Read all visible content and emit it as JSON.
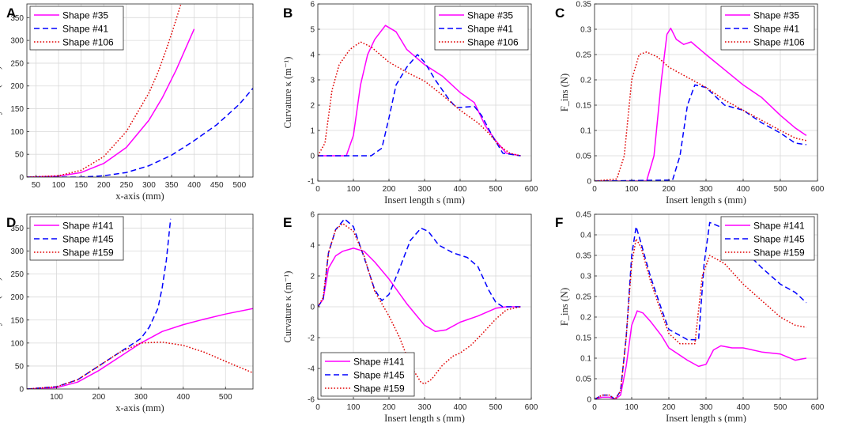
{
  "figure": {
    "colors": {
      "magenta": "#ff00ff",
      "blue": "#0000ff",
      "red": "#e00000",
      "axis": "#262626"
    }
  },
  "chart_data": [
    {
      "panel": "A",
      "type": "line",
      "xlabel": "x-axis (mm)",
      "ylabel": "y-axis (mm)",
      "xlim": [
        30,
        530
      ],
      "ylim": [
        0,
        380
      ],
      "xticks": [
        50,
        100,
        150,
        200,
        250,
        300,
        350,
        400,
        450,
        500
      ],
      "yticks": [
        0,
        50,
        100,
        150,
        200,
        250,
        300,
        350
      ],
      "legend_position": "top-left",
      "series": [
        {
          "name": "Shape #35",
          "style": "solid",
          "color": "#ff00ff",
          "x": [
            30,
            100,
            150,
            200,
            250,
            300,
            330,
            360,
            380,
            400
          ],
          "y": [
            0,
            2,
            10,
            30,
            65,
            125,
            175,
            235,
            280,
            325
          ]
        },
        {
          "name": "Shape #41",
          "style": "dashed",
          "color": "#0000ff",
          "x": [
            30,
            150,
            200,
            250,
            300,
            350,
            400,
            450,
            500,
            530
          ],
          "y": [
            0,
            0,
            3,
            10,
            25,
            48,
            80,
            115,
            160,
            195
          ]
        },
        {
          "name": "Shape #106",
          "style": "dotted",
          "color": "#e00000",
          "x": [
            30,
            100,
            150,
            200,
            250,
            300,
            320,
            340,
            355,
            370
          ],
          "y": [
            0,
            3,
            15,
            45,
            100,
            185,
            230,
            285,
            330,
            378
          ]
        }
      ]
    },
    {
      "panel": "B",
      "type": "line",
      "xlabel": "Insert length s (mm)",
      "ylabel": "Curvature κ (m⁻¹)",
      "xlim": [
        0,
        600
      ],
      "ylim": [
        -1,
        6
      ],
      "xticks": [
        0,
        100,
        200,
        300,
        400,
        500,
        600
      ],
      "yticks": [
        -1,
        0,
        1,
        2,
        3,
        4,
        5,
        6
      ],
      "legend_position": "top-right",
      "series": [
        {
          "name": "Shape #35",
          "style": "solid",
          "color": "#ff00ff",
          "x": [
            0,
            80,
            100,
            120,
            140,
            160,
            190,
            220,
            250,
            300,
            350,
            400,
            440,
            470,
            500,
            530,
            570
          ],
          "y": [
            0,
            0,
            0.8,
            2.8,
            4,
            4.6,
            5.15,
            4.9,
            4.2,
            3.6,
            3.15,
            2.5,
            2.1,
            1.2,
            0.6,
            0.1,
            0
          ]
        },
        {
          "name": "Shape #41",
          "style": "dashed",
          "color": "#0000ff",
          "x": [
            0,
            150,
            180,
            200,
            220,
            250,
            280,
            300,
            330,
            370,
            390,
            440,
            460,
            490,
            520,
            570
          ],
          "y": [
            0,
            0,
            0.3,
            1.5,
            2.8,
            3.5,
            4,
            3.7,
            3,
            2.2,
            1.9,
            1.95,
            1.6,
            0.8,
            0.1,
            0
          ]
        },
        {
          "name": "Shape #106",
          "style": "dotted",
          "color": "#e00000",
          "x": [
            0,
            20,
            40,
            60,
            90,
            120,
            150,
            200,
            250,
            300,
            350,
            400,
            450,
            480,
            510,
            540,
            570
          ],
          "y": [
            0,
            0.5,
            2.6,
            3.6,
            4.2,
            4.5,
            4.3,
            3.7,
            3.3,
            2.95,
            2.4,
            1.8,
            1.3,
            0.9,
            0.4,
            0.1,
            0
          ]
        }
      ]
    },
    {
      "panel": "C",
      "type": "line",
      "xlabel": "Insert length s (mm)",
      "ylabel": "F_ins (N)",
      "xlim": [
        0,
        600
      ],
      "ylim": [
        0,
        0.35
      ],
      "xticks": [
        0,
        100,
        200,
        300,
        400,
        500,
        600
      ],
      "yticks": [
        0,
        0.05,
        0.1,
        0.15,
        0.2,
        0.25,
        0.3,
        0.35
      ],
      "ytick_labels": [
        "0",
        "0.05",
        "0.1",
        "0.15",
        "0.2",
        "0.25",
        "0.3",
        "0.35"
      ],
      "legend_position": "top-right",
      "series": [
        {
          "name": "Shape #35",
          "style": "solid",
          "color": "#ff00ff",
          "x": [
            0,
            140,
            160,
            180,
            195,
            205,
            220,
            240,
            260,
            300,
            350,
            400,
            450,
            500,
            540,
            570
          ],
          "y": [
            0,
            0,
            0.05,
            0.2,
            0.29,
            0.302,
            0.28,
            0.27,
            0.275,
            0.25,
            0.22,
            0.19,
            0.165,
            0.13,
            0.105,
            0.09
          ]
        },
        {
          "name": "Shape #41",
          "style": "dashed",
          "color": "#0000ff",
          "x": [
            0,
            210,
            230,
            250,
            270,
            300,
            350,
            400,
            450,
            500,
            540,
            570
          ],
          "y": [
            0,
            0.002,
            0.05,
            0.15,
            0.19,
            0.185,
            0.15,
            0.14,
            0.115,
            0.095,
            0.075,
            0.072
          ]
        },
        {
          "name": "Shape #106",
          "style": "dotted",
          "color": "#e00000",
          "x": [
            0,
            60,
            80,
            100,
            120,
            140,
            170,
            200,
            250,
            300,
            350,
            400,
            450,
            500,
            540,
            570
          ],
          "y": [
            0,
            0.004,
            0.05,
            0.2,
            0.25,
            0.255,
            0.245,
            0.225,
            0.205,
            0.185,
            0.16,
            0.14,
            0.12,
            0.1,
            0.085,
            0.08
          ]
        }
      ]
    },
    {
      "panel": "D",
      "type": "line",
      "xlabel": "x-axis (mm)",
      "ylabel": "y-axis (mm)",
      "xlim": [
        30,
        565
      ],
      "ylim": [
        0,
        380
      ],
      "xticks": [
        100,
        200,
        300,
        400,
        500
      ],
      "yticks": [
        0,
        50,
        100,
        150,
        200,
        250,
        300,
        350
      ],
      "legend_position": "top-left",
      "series": [
        {
          "name": "Shape #141",
          "style": "solid",
          "color": "#ff00ff",
          "x": [
            30,
            100,
            150,
            200,
            250,
            300,
            350,
            400,
            450,
            500,
            565
          ],
          "y": [
            0,
            3,
            15,
            40,
            70,
            100,
            125,
            140,
            152,
            163,
            175
          ]
        },
        {
          "name": "Shape #145",
          "style": "dashed",
          "color": "#0000ff",
          "x": [
            30,
            100,
            150,
            200,
            250,
            300,
            320,
            340,
            350,
            360,
            370
          ],
          "y": [
            0,
            5,
            20,
            50,
            80,
            110,
            135,
            175,
            220,
            280,
            370
          ]
        },
        {
          "name": "Shape #159",
          "style": "dotted",
          "color": "#e00000",
          "x": [
            30,
            100,
            150,
            200,
            250,
            300,
            350,
            400,
            450,
            500,
            565
          ],
          "y": [
            0,
            5,
            20,
            50,
            80,
            100,
            102,
            95,
            80,
            60,
            35
          ]
        }
      ]
    },
    {
      "panel": "E",
      "type": "line",
      "xlabel": "Insert length s (mm)",
      "ylabel": "Curvature κ (m⁻¹)",
      "xlim": [
        0,
        600
      ],
      "ylim": [
        -6,
        6
      ],
      "xticks": [
        0,
        100,
        200,
        300,
        400,
        500,
        600
      ],
      "yticks": [
        -6,
        -4,
        -2,
        0,
        2,
        4,
        6
      ],
      "legend_position": "bottom-left",
      "series": [
        {
          "name": "Shape #141",
          "style": "solid",
          "color": "#ff00ff",
          "x": [
            0,
            15,
            30,
            50,
            70,
            100,
            130,
            160,
            200,
            250,
            300,
            330,
            360,
            400,
            450,
            500,
            530,
            570
          ],
          "y": [
            0,
            0.5,
            2.5,
            3.3,
            3.6,
            3.8,
            3.6,
            2.9,
            1.8,
            0.2,
            -1.2,
            -1.6,
            -1.5,
            -1,
            -0.6,
            -0.1,
            0,
            0
          ]
        },
        {
          "name": "Shape #145",
          "style": "dashed",
          "color": "#0000ff",
          "x": [
            0,
            15,
            30,
            50,
            75,
            100,
            130,
            160,
            180,
            200,
            230,
            260,
            290,
            310,
            340,
            380,
            420,
            450,
            480,
            500,
            520,
            570
          ],
          "y": [
            0,
            0.5,
            3.5,
            5,
            5.7,
            5.2,
            3.2,
            1.1,
            0.4,
            0.8,
            2.5,
            4.3,
            5.1,
            4.9,
            4,
            3.5,
            3.2,
            2.6,
            1.1,
            0.3,
            0,
            0
          ]
        },
        {
          "name": "Shape #159",
          "style": "dotted",
          "color": "#e00000",
          "x": [
            0,
            15,
            30,
            50,
            70,
            100,
            130,
            160,
            200,
            230,
            260,
            290,
            300,
            320,
            350,
            380,
            400,
            430,
            460,
            500,
            530,
            570
          ],
          "y": [
            0,
            0.6,
            3.5,
            5,
            5.4,
            4.9,
            3.3,
            1,
            -0.6,
            -2,
            -3.8,
            -4.9,
            -5,
            -4.7,
            -3.8,
            -3.2,
            -3,
            -2.5,
            -1.8,
            -0.8,
            -0.2,
            0
          ]
        }
      ]
    },
    {
      "panel": "F",
      "type": "line",
      "xlabel": "Insert length s (mm)",
      "ylabel": "F_ins (N)",
      "xlim": [
        0,
        600
      ],
      "ylim": [
        0,
        0.45
      ],
      "xticks": [
        0,
        100,
        200,
        300,
        400,
        500,
        600
      ],
      "yticks": [
        0,
        0.05,
        0.1,
        0.15,
        0.2,
        0.25,
        0.3,
        0.35,
        0.4,
        0.45
      ],
      "ytick_labels": [
        "0",
        "0.05",
        "0.1",
        "0.15",
        "0.2",
        "0.25",
        "0.3",
        "0.35",
        "0.4",
        "0.45"
      ],
      "legend_position": "top-right",
      "series": [
        {
          "name": "Shape #141",
          "style": "solid",
          "color": "#ff00ff",
          "x": [
            0,
            20,
            40,
            55,
            70,
            85,
            100,
            115,
            130,
            150,
            180,
            200,
            250,
            280,
            300,
            320,
            340,
            370,
            400,
            450,
            500,
            540,
            570
          ],
          "y": [
            0,
            0.005,
            0.005,
            0,
            0.01,
            0.08,
            0.18,
            0.215,
            0.21,
            0.19,
            0.155,
            0.125,
            0.095,
            0.08,
            0.085,
            0.12,
            0.13,
            0.125,
            0.125,
            0.115,
            0.11,
            0.095,
            0.1
          ]
        },
        {
          "name": "Shape #145",
          "style": "dashed",
          "color": "#0000ff",
          "x": [
            0,
            20,
            40,
            55,
            70,
            85,
            100,
            112,
            125,
            150,
            180,
            200,
            250,
            280,
            295,
            310,
            350,
            400,
            450,
            500,
            540,
            570
          ],
          "y": [
            0,
            0.01,
            0.01,
            0,
            0.02,
            0.15,
            0.35,
            0.42,
            0.38,
            0.3,
            0.22,
            0.17,
            0.145,
            0.145,
            0.33,
            0.43,
            0.415,
            0.365,
            0.32,
            0.28,
            0.26,
            0.235
          ]
        },
        {
          "name": "Shape #159",
          "style": "dotted",
          "color": "#e00000",
          "x": [
            0,
            20,
            40,
            55,
            70,
            85,
            100,
            112,
            125,
            150,
            180,
            200,
            230,
            270,
            290,
            310,
            350,
            400,
            450,
            500,
            540,
            570
          ],
          "y": [
            0,
            0.01,
            0.01,
            0,
            0.02,
            0.15,
            0.33,
            0.39,
            0.37,
            0.29,
            0.21,
            0.16,
            0.135,
            0.135,
            0.3,
            0.35,
            0.33,
            0.28,
            0.24,
            0.2,
            0.18,
            0.175
          ]
        }
      ]
    }
  ]
}
